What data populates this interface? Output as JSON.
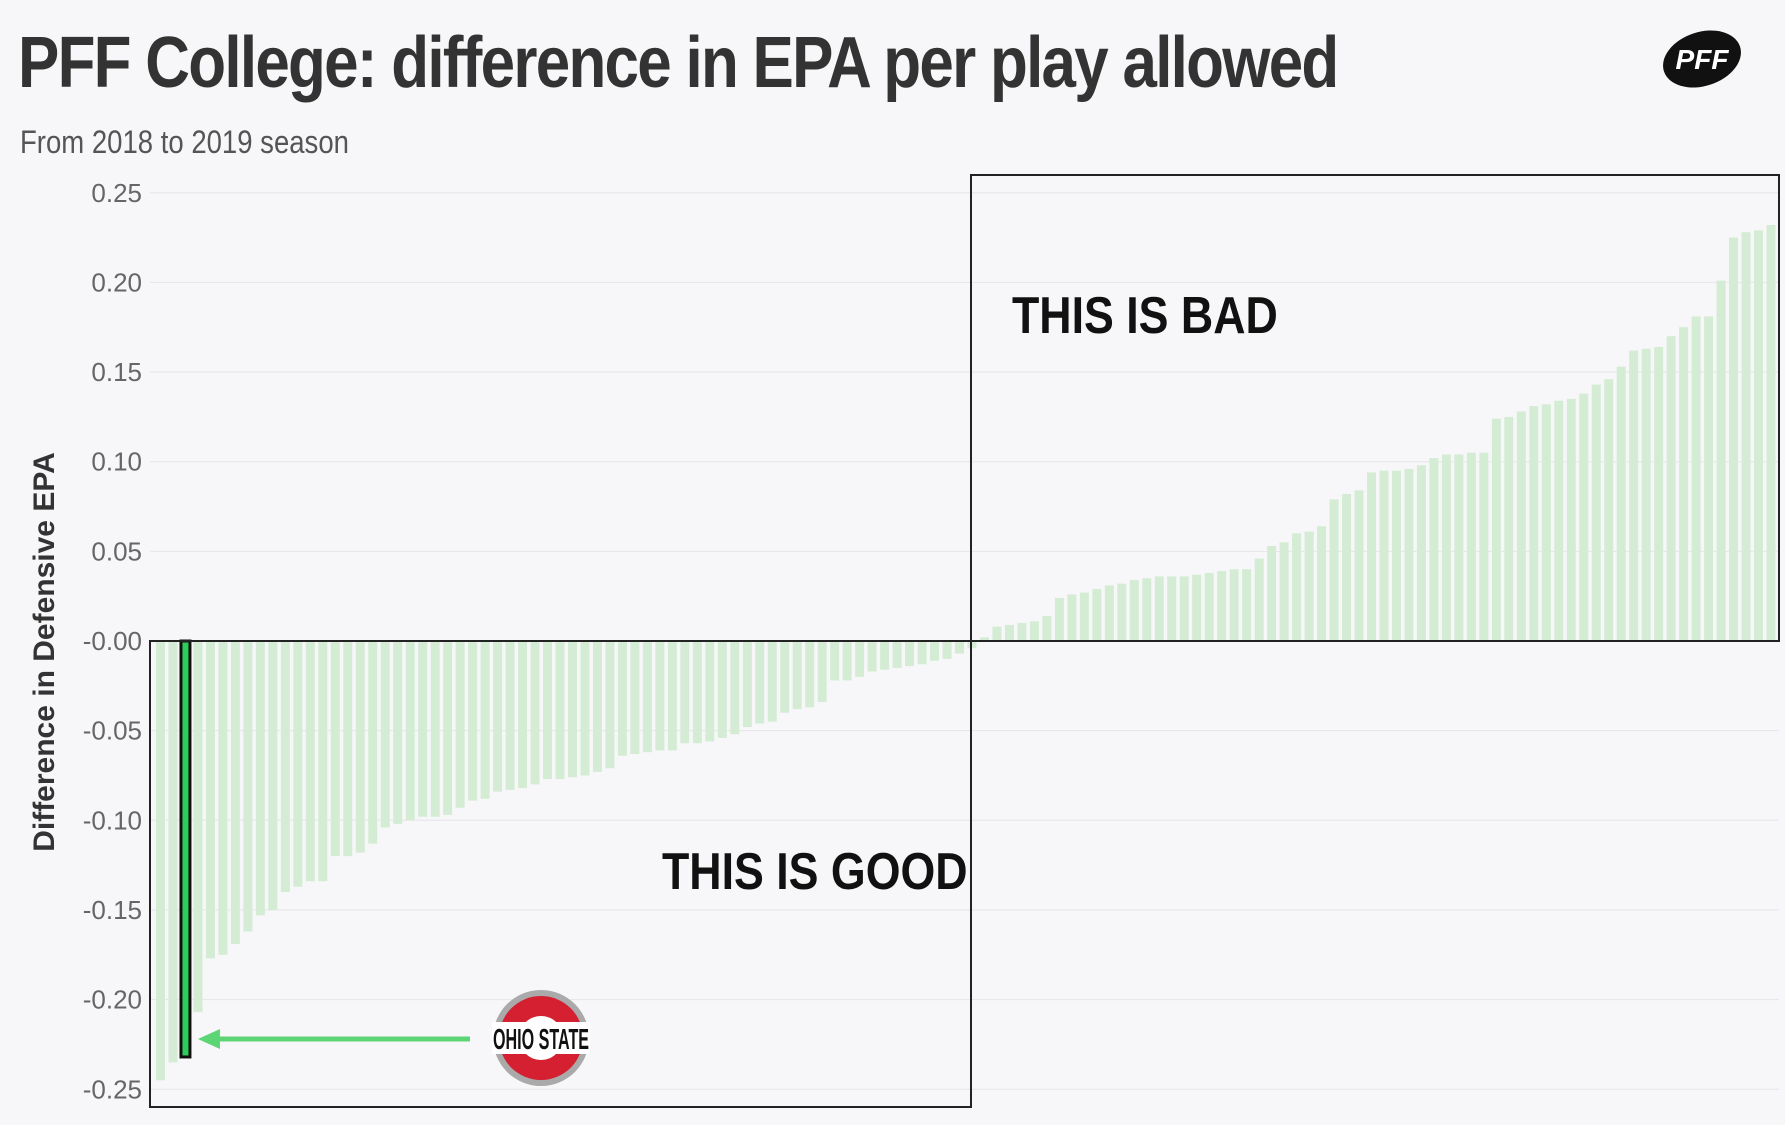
{
  "header": {
    "title": "PFF College: difference in EPA per play allowed",
    "subtitle": "From 2018 to 2019 season",
    "logo_text": "PFF"
  },
  "colors": {
    "bar": "#d3ecd3",
    "highlight": "#2ecc5a",
    "arrow": "#5cd675",
    "osu_red": "#d42030",
    "osu_gray": "#aaaaaa"
  },
  "annotations": {
    "bad": "THIS IS BAD",
    "good": "THIS IS GOOD",
    "highlight_team": "OHIO STATE"
  },
  "chart_data": {
    "type": "bar",
    "title": "PFF College: difference in EPA per play allowed",
    "subtitle": "From 2018 to 2019 season",
    "ylabel": "Difference in Defensive EPA",
    "xlabel": "",
    "ylim": [
      -0.26,
      0.25
    ],
    "yticks": [
      0.25,
      0.2,
      0.15,
      0.1,
      0.05,
      -0.0,
      -0.05,
      -0.1,
      -0.15,
      -0.2,
      -0.25
    ],
    "ytick_labels": [
      "0.25",
      "0.20",
      "0.15",
      "0.10",
      "0.05",
      "-0.00",
      "-0.05",
      "-0.10",
      "-0.15",
      "-0.20",
      "-0.25"
    ],
    "grid": true,
    "highlight_index": 2,
    "highlight_label": "OHIO STATE",
    "values": [
      -0.245,
      -0.235,
      -0.232,
      -0.207,
      -0.177,
      -0.175,
      -0.169,
      -0.162,
      -0.153,
      -0.15,
      -0.14,
      -0.137,
      -0.134,
      -0.134,
      -0.12,
      -0.12,
      -0.118,
      -0.113,
      -0.104,
      -0.102,
      -0.1,
      -0.098,
      -0.098,
      -0.097,
      -0.093,
      -0.089,
      -0.088,
      -0.084,
      -0.083,
      -0.082,
      -0.08,
      -0.077,
      -0.077,
      -0.076,
      -0.075,
      -0.073,
      -0.071,
      -0.064,
      -0.063,
      -0.062,
      -0.061,
      -0.061,
      -0.057,
      -0.057,
      -0.056,
      -0.054,
      -0.052,
      -0.048,
      -0.046,
      -0.045,
      -0.04,
      -0.038,
      -0.037,
      -0.034,
      -0.022,
      -0.022,
      -0.02,
      -0.017,
      -0.016,
      -0.015,
      -0.014,
      -0.013,
      -0.011,
      -0.01,
      -0.007,
      -0.004,
      0.002,
      0.008,
      0.009,
      0.01,
      0.011,
      0.014,
      0.024,
      0.026,
      0.027,
      0.029,
      0.031,
      0.032,
      0.034,
      0.035,
      0.036,
      0.036,
      0.036,
      0.037,
      0.038,
      0.039,
      0.04,
      0.04,
      0.046,
      0.053,
      0.055,
      0.06,
      0.061,
      0.064,
      0.079,
      0.082,
      0.084,
      0.094,
      0.095,
      0.095,
      0.096,
      0.098,
      0.102,
      0.104,
      0.104,
      0.105,
      0.105,
      0.124,
      0.125,
      0.128,
      0.131,
      0.132,
      0.134,
      0.135,
      0.138,
      0.143,
      0.146,
      0.153,
      0.162,
      0.163,
      0.164,
      0.17,
      0.175,
      0.181,
      0.181,
      0.201,
      0.225,
      0.228,
      0.229,
      0.232
    ]
  }
}
